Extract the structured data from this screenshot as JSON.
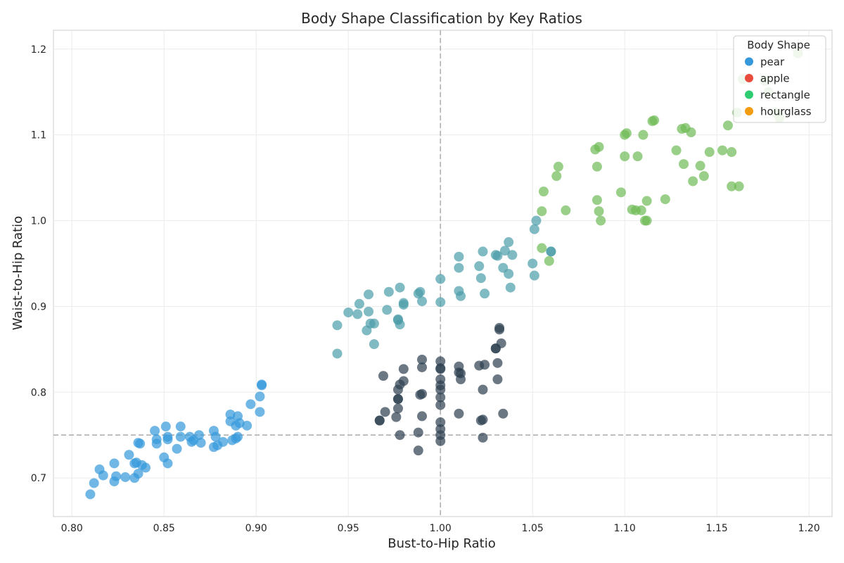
{
  "chart_data": {
    "type": "scatter",
    "title": "Body Shape Classification by Key Ratios",
    "xlabel": "Bust-to-Hip Ratio",
    "ylabel": "Waist-to-Hip Ratio",
    "xlim": [
      0.79,
      1.2125
    ],
    "ylim": [
      0.655,
      1.222
    ],
    "xticks": [
      0.8,
      0.85,
      0.9,
      0.95,
      1.0,
      1.05,
      1.1,
      1.15,
      1.2
    ],
    "xtick_labels": [
      "0.80",
      "0.85",
      "0.90",
      "0.95",
      "1.00",
      "1.05",
      "1.10",
      "1.15",
      "1.20"
    ],
    "yticks": [
      0.7,
      0.8,
      0.9,
      1.0,
      1.1,
      1.2
    ],
    "ytick_labels": [
      "0.7",
      "0.8",
      "0.9",
      "1.0",
      "1.1",
      "1.2"
    ],
    "grid": true,
    "reference_lines": [
      {
        "orientation": "vertical",
        "value": 1.0,
        "style": "dashed",
        "color": "#b0b0b0"
      },
      {
        "orientation": "horizontal",
        "value": 0.75,
        "style": "dashed",
        "color": "#b0b0b0"
      }
    ],
    "legend": {
      "title": "Body Shape",
      "placement": "top-right",
      "entries": [
        {
          "label": "pear",
          "color": "#3498db"
        },
        {
          "label": "apple",
          "color": "#e74c3c"
        },
        {
          "label": "rectangle",
          "color": "#2ecc71"
        },
        {
          "label": "hourglass",
          "color": "#f39c12"
        }
      ]
    },
    "point_opacity": 0.7,
    "series": [
      {
        "color": "#3498db",
        "points": [
          [
            0.81,
            0.681
          ],
          [
            0.812,
            0.694
          ],
          [
            0.815,
            0.71
          ],
          [
            0.817,
            0.703
          ],
          [
            0.823,
            0.717
          ],
          [
            0.823,
            0.696
          ],
          [
            0.824,
            0.702
          ],
          [
            0.829,
            0.701
          ],
          [
            0.831,
            0.727
          ],
          [
            0.834,
            0.717
          ],
          [
            0.834,
            0.7
          ],
          [
            0.835,
            0.718
          ],
          [
            0.836,
            0.741
          ],
          [
            0.836,
            0.705
          ],
          [
            0.837,
            0.74
          ],
          [
            0.838,
            0.715
          ],
          [
            0.84,
            0.712
          ],
          [
            0.845,
            0.755
          ],
          [
            0.846,
            0.745
          ],
          [
            0.846,
            0.74
          ],
          [
            0.85,
            0.724
          ],
          [
            0.851,
            0.76
          ],
          [
            0.852,
            0.748
          ],
          [
            0.852,
            0.717
          ],
          [
            0.852,
            0.745
          ],
          [
            0.857,
            0.734
          ],
          [
            0.859,
            0.76
          ],
          [
            0.859,
            0.748
          ],
          [
            0.864,
            0.748
          ],
          [
            0.865,
            0.742
          ],
          [
            0.866,
            0.744
          ],
          [
            0.869,
            0.75
          ],
          [
            0.87,
            0.741
          ],
          [
            0.877,
            0.755
          ],
          [
            0.877,
            0.736
          ],
          [
            0.878,
            0.748
          ],
          [
            0.879,
            0.738
          ],
          [
            0.882,
            0.742
          ],
          [
            0.886,
            0.774
          ],
          [
            0.886,
            0.766
          ],
          [
            0.887,
            0.744
          ],
          [
            0.889,
            0.746
          ],
          [
            0.889,
            0.761
          ],
          [
            0.89,
            0.748
          ],
          [
            0.89,
            0.772
          ],
          [
            0.891,
            0.764
          ],
          [
            0.895,
            0.761
          ],
          [
            0.897,
            0.786
          ],
          [
            0.902,
            0.795
          ],
          [
            0.902,
            0.777
          ],
          [
            0.903,
            0.808
          ],
          [
            0.903,
            0.809
          ]
        ]
      },
      {
        "color": "#4a9da8",
        "points": [
          [
            0.944,
            0.878
          ],
          [
            0.944,
            0.845
          ],
          [
            0.95,
            0.893
          ],
          [
            0.955,
            0.891
          ],
          [
            0.956,
            0.903
          ],
          [
            0.96,
            0.872
          ],
          [
            0.961,
            0.894
          ],
          [
            0.961,
            0.914
          ],
          [
            0.962,
            0.88
          ],
          [
            0.964,
            0.88
          ],
          [
            0.964,
            0.856
          ],
          [
            0.971,
            0.896
          ],
          [
            0.972,
            0.917
          ],
          [
            0.977,
            0.885
          ],
          [
            0.977,
            0.884
          ],
          [
            0.978,
            0.879
          ],
          [
            0.978,
            0.922
          ],
          [
            0.98,
            0.902
          ],
          [
            0.98,
            0.904
          ],
          [
            0.988,
            0.915
          ],
          [
            0.989,
            0.917
          ],
          [
            0.99,
            0.906
          ],
          [
            1.0,
            0.932
          ],
          [
            1.0,
            0.905
          ],
          [
            1.01,
            0.958
          ],
          [
            1.01,
            0.945
          ],
          [
            1.01,
            0.918
          ],
          [
            1.011,
            0.912
          ],
          [
            1.021,
            0.947
          ],
          [
            1.022,
            0.933
          ],
          [
            1.023,
            0.964
          ],
          [
            1.024,
            0.915
          ],
          [
            1.03,
            0.96
          ],
          [
            1.031,
            0.959
          ],
          [
            1.034,
            0.945
          ],
          [
            1.035,
            0.965
          ],
          [
            1.037,
            0.938
          ],
          [
            1.037,
            0.975
          ],
          [
            1.038,
            0.922
          ],
          [
            1.039,
            0.96
          ],
          [
            1.05,
            0.95
          ],
          [
            1.051,
            0.936
          ],
          [
            1.051,
            0.99
          ],
          [
            1.052,
            1.0
          ],
          [
            1.06,
            0.964
          ],
          [
            1.06,
            0.964
          ]
        ]
      },
      {
        "color": "#2c3e50",
        "points": [
          [
            0.967,
            0.767
          ],
          [
            0.967,
            0.767
          ],
          [
            0.969,
            0.819
          ],
          [
            0.97,
            0.777
          ],
          [
            0.976,
            0.771
          ],
          [
            0.977,
            0.792
          ],
          [
            0.977,
            0.781
          ],
          [
            0.977,
            0.792
          ],
          [
            0.977,
            0.803
          ],
          [
            0.978,
            0.809
          ],
          [
            0.978,
            0.75
          ],
          [
            0.98,
            0.813
          ],
          [
            0.98,
            0.827
          ],
          [
            0.988,
            0.753
          ],
          [
            0.988,
            0.732
          ],
          [
            0.989,
            0.797
          ],
          [
            0.99,
            0.798
          ],
          [
            0.99,
            0.838
          ],
          [
            0.99,
            0.829
          ],
          [
            0.99,
            0.772
          ],
          [
            1.0,
            0.836
          ],
          [
            1.0,
            0.827
          ],
          [
            1.0,
            0.828
          ],
          [
            1.0,
            0.815
          ],
          [
            1.0,
            0.808
          ],
          [
            1.0,
            0.803
          ],
          [
            1.0,
            0.794
          ],
          [
            1.0,
            0.785
          ],
          [
            1.0,
            0.765
          ],
          [
            1.0,
            0.757
          ],
          [
            1.0,
            0.75
          ],
          [
            1.0,
            0.743
          ],
          [
            1.01,
            0.83
          ],
          [
            1.01,
            0.823
          ],
          [
            1.01,
            0.775
          ],
          [
            1.011,
            0.815
          ],
          [
            1.011,
            0.822
          ],
          [
            1.021,
            0.831
          ],
          [
            1.022,
            0.767
          ],
          [
            1.023,
            0.803
          ],
          [
            1.023,
            0.768
          ],
          [
            1.023,
            0.747
          ],
          [
            1.024,
            0.832
          ],
          [
            1.03,
            0.851
          ],
          [
            1.03,
            0.851
          ],
          [
            1.031,
            0.834
          ],
          [
            1.031,
            0.815
          ],
          [
            1.032,
            0.873
          ],
          [
            1.032,
            0.875
          ],
          [
            1.033,
            0.857
          ],
          [
            1.034,
            0.775
          ]
        ]
      },
      {
        "color": "#6dbb55",
        "points": [
          [
            1.055,
            0.968
          ],
          [
            1.055,
            1.011
          ],
          [
            1.056,
            1.034
          ],
          [
            1.059,
            0.953
          ],
          [
            1.063,
            1.052
          ],
          [
            1.064,
            1.063
          ],
          [
            1.068,
            1.012
          ],
          [
            1.084,
            1.083
          ],
          [
            1.085,
            1.024
          ],
          [
            1.085,
            1.063
          ],
          [
            1.086,
            1.011
          ],
          [
            1.086,
            1.086
          ],
          [
            1.087,
            1.0
          ],
          [
            1.098,
            1.033
          ],
          [
            1.1,
            1.075
          ],
          [
            1.1,
            1.1
          ],
          [
            1.101,
            1.102
          ],
          [
            1.104,
            1.013
          ],
          [
            1.106,
            1.012
          ],
          [
            1.107,
            1.075
          ],
          [
            1.109,
            1.012
          ],
          [
            1.11,
            1.1
          ],
          [
            1.111,
            1.0
          ],
          [
            1.112,
            1.0
          ],
          [
            1.112,
            1.023
          ],
          [
            1.115,
            1.116
          ],
          [
            1.116,
            1.117
          ],
          [
            1.122,
            1.025
          ],
          [
            1.128,
            1.082
          ],
          [
            1.131,
            1.107
          ],
          [
            1.132,
            1.066
          ],
          [
            1.133,
            1.108
          ],
          [
            1.136,
            1.103
          ],
          [
            1.137,
            1.046
          ],
          [
            1.141,
            1.064
          ],
          [
            1.143,
            1.052
          ],
          [
            1.146,
            1.08
          ],
          [
            1.153,
            1.082
          ],
          [
            1.156,
            1.111
          ],
          [
            1.158,
            1.04
          ],
          [
            1.158,
            1.08
          ],
          [
            1.161,
            1.126
          ],
          [
            1.162,
            1.04
          ],
          [
            1.164,
            1.165
          ],
          [
            1.176,
            1.163
          ],
          [
            1.178,
            1.15
          ],
          [
            1.182,
            1.126
          ],
          [
            1.184,
            1.12
          ],
          [
            1.194,
            1.195
          ]
        ]
      }
    ]
  }
}
